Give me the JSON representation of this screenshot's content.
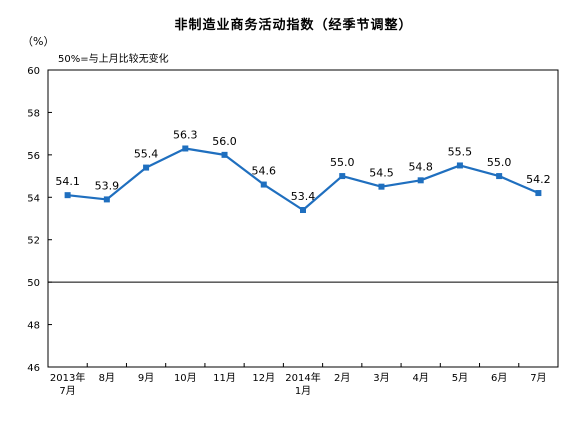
{
  "chart_data": {
    "type": "line",
    "title": "非制造业商务活动指数（经季节调整）",
    "unit": "（%）",
    "note": "50%=与上月比较无变化",
    "categories": [
      "2013年\n7月",
      "8月",
      "9月",
      "10月",
      "11月",
      "12月",
      "2014年\n1月",
      "2月",
      "3月",
      "4月",
      "5月",
      "6月",
      "7月"
    ],
    "values": [
      54.1,
      53.9,
      55.4,
      56.3,
      56.0,
      54.6,
      53.4,
      55.0,
      54.5,
      54.8,
      55.5,
      55.0,
      54.2
    ],
    "data_labels": [
      "54.1",
      "53.9",
      "55.4",
      "56.3",
      "56.0",
      "54.6",
      "53.4",
      "55.0",
      "54.5",
      "54.8",
      "55.5",
      "55.0",
      "54.2"
    ],
    "y_ticks": [
      "60",
      "58",
      "56",
      "54",
      "52",
      "50",
      "48",
      "46"
    ],
    "ylim": [
      46,
      60
    ],
    "reference_line": 50,
    "grid": false,
    "line_color": "#1f6fbf",
    "marker": "square"
  }
}
